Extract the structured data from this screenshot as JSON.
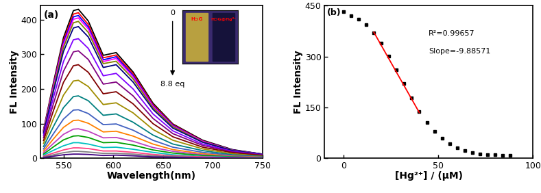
{
  "chart_data": [
    {
      "type": "line",
      "x_label": "Wavelength(nm)",
      "y_label": "FL Intensity",
      "annotations": [
        "(a)",
        "0",
        "8.8 eq",
        "H⊃G",
        "H⊃G@Hg²⁺"
      ],
      "xlim": [
        527,
        750
      ],
      "xticks": [
        550,
        600,
        650,
        700,
        750
      ],
      "ylim": [
        0,
        440
      ],
      "yticks": [
        0,
        100,
        200,
        300,
        400
      ],
      "x": [
        530,
        540,
        550,
        560,
        565,
        575,
        590,
        603,
        620,
        640,
        660,
        690,
        720,
        750
      ],
      "series": [
        {
          "color": "#000000",
          "values": [
            82,
            219,
            348,
            426,
            430,
            396,
            297,
            305,
            249,
            159,
            99,
            52,
            25,
            12
          ]
        },
        {
          "color": "#ff0000",
          "values": [
            80,
            214,
            340,
            416,
            420,
            386,
            290,
            298,
            244,
            155,
            97,
            50,
            24,
            12
          ]
        },
        {
          "color": "#0000ff",
          "values": [
            78,
            210,
            334,
            408,
            412,
            379,
            284,
            293,
            239,
            152,
            95,
            49,
            24,
            12
          ]
        },
        {
          "color": "#ff00ff",
          "values": [
            77,
            207,
            328,
            401,
            405,
            373,
            279,
            288,
            235,
            150,
            93,
            49,
            23,
            11
          ]
        },
        {
          "color": "#808000",
          "values": [
            75,
            201,
            320,
            391,
            395,
            363,
            273,
            280,
            229,
            146,
            91,
            47,
            23,
            11
          ]
        },
        {
          "color": "#000080",
          "values": [
            72,
            194,
            308,
            376,
            380,
            350,
            262,
            270,
            220,
            141,
            87,
            46,
            22,
            11
          ]
        },
        {
          "color": "#8000ff",
          "values": [
            66,
            176,
            279,
            342,
            345,
            317,
            238,
            245,
            200,
            128,
            79,
            41,
            20,
            10
          ]
        },
        {
          "color": "#800080",
          "values": [
            59,
            158,
            251,
            307,
            310,
            285,
            214,
            220,
            180,
            115,
            71,
            37,
            18,
            9
          ]
        },
        {
          "color": "#800000",
          "values": [
            51,
            138,
            219,
            267,
            270,
            248,
            186,
            192,
            157,
            100,
            62,
            32,
            16,
            8
          ]
        },
        {
          "color": "#a08c00",
          "values": [
            43,
            115,
            182,
            223,
            225,
            207,
            155,
            160,
            131,
            83,
            52,
            27,
            13,
            6
          ]
        },
        {
          "color": "#008080",
          "values": [
            34,
            92,
            146,
            178,
            180,
            166,
            124,
            128,
            104,
            67,
            41,
            22,
            10,
            5
          ]
        },
        {
          "color": "#4060c0",
          "values": [
            27,
            71,
            113,
            139,
            140,
            129,
            97,
            99,
            81,
            52,
            32,
            17,
            8,
            4
          ]
        },
        {
          "color": "#ff8000",
          "values": [
            21,
            56,
            89,
            109,
            110,
            101,
            76,
            78,
            64,
            41,
            25,
            13,
            6,
            3
          ]
        },
        {
          "color": "#c040c0",
          "values": [
            16,
            43,
            69,
            84,
            85,
            78,
            59,
            60,
            49,
            31,
            20,
            10,
            5,
            2
          ]
        },
        {
          "color": "#00a000",
          "values": [
            12,
            33,
            53,
            64,
            65,
            60,
            45,
            46,
            38,
            24,
            15,
            8,
            4,
            2
          ]
        },
        {
          "color": "#00c0c0",
          "values": [
            9,
            23,
            36,
            45,
            45,
            41,
            31,
            32,
            26,
            17,
            10,
            5,
            3,
            1
          ]
        },
        {
          "color": "#ff4080",
          "values": [
            6,
            15,
            24,
            30,
            30,
            28,
            21,
            21,
            17,
            11,
            7,
            4,
            2,
            1
          ]
        },
        {
          "color": "#808080",
          "values": [
            4,
            10,
            16,
            20,
            20,
            18,
            14,
            14,
            12,
            7,
            5,
            2,
            1,
            1
          ]
        },
        {
          "color": "#400080",
          "values": [
            2,
            6,
            10,
            12,
            12,
            11,
            8,
            9,
            7,
            4,
            3,
            1,
            1,
            0
          ]
        }
      ]
    },
    {
      "type": "scatter",
      "x_label": "[Hg²⁺] / (μM)",
      "y_label": "FL Intensity",
      "annotations": [
        "(b)",
        "R²=0.99657",
        "Slope=-9.88571"
      ],
      "xlim": [
        -10,
        100
      ],
      "xticks": [
        0,
        50,
        100
      ],
      "ylim": [
        0,
        450
      ],
      "yticks": [
        0,
        150,
        300,
        450
      ],
      "series": [
        {
          "type": "scatter",
          "color": "#000000",
          "marker": "square",
          "x": [
            0,
            4,
            8,
            12,
            16,
            20,
            24,
            28,
            32,
            36,
            40,
            44,
            48,
            52,
            56,
            60,
            64,
            68,
            72,
            76,
            80,
            84,
            88
          ],
          "values": [
            432,
            420,
            410,
            395,
            370,
            340,
            302,
            262,
            220,
            178,
            138,
            105,
            80,
            60,
            42,
            30,
            22,
            16,
            13,
            11,
            10,
            9,
            9
          ]
        },
        {
          "type": "line",
          "color": "#ff0000",
          "line_style": "solid",
          "x": [
            16,
            40
          ],
          "values": [
            372,
            135
          ]
        }
      ]
    }
  ]
}
